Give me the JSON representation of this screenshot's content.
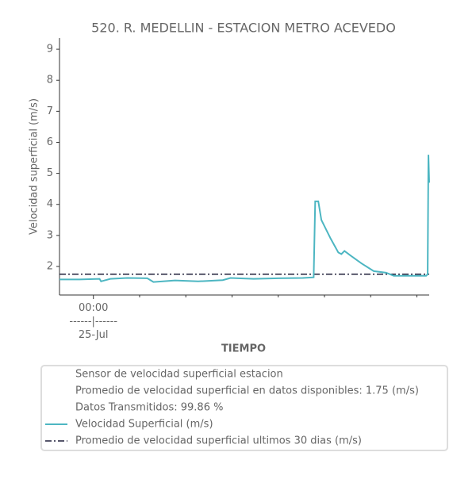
{
  "chart_data": {
    "type": "line",
    "title": "520. R. MEDELLIN - ESTACION METRO ACEVEDO",
    "ylabel": "Velocidad superficial (m/s)",
    "xlabel": "TIEMPO",
    "xlim": [
      -2.2,
      21.8
    ],
    "xticks": [
      {
        "value": 0,
        "label": "00:00\n------|------\n25-Jul"
      }
    ],
    "xminorticks": [
      3,
      6,
      9,
      12,
      15,
      18,
      21
    ],
    "ylim": [
      1.08,
      9.36
    ],
    "yticks": [
      2,
      3,
      4,
      5,
      6,
      7,
      8,
      9
    ],
    "legend_notes": [
      "Sensor de velocidad superficial estacion",
      "Promedio de velocidad superficial en datos disponibles: 1.75 (m/s)",
      "Datos Transmitidos: 99.86 %"
    ],
    "series": [
      {
        "name": "Velocidad Superficial (m/s)",
        "color": "#4db6c2",
        "style": "solid",
        "x": [
          -2.2,
          -0.9,
          0.4,
          0.5,
          1.1,
          2.2,
          3.5,
          3.9,
          5.3,
          6.8,
          8.4,
          8.9,
          10.4,
          12.0,
          13.6,
          14.3,
          14.4,
          14.6,
          14.8,
          15.4,
          15.9,
          16.1,
          16.3,
          16.7,
          17.4,
          18.2,
          19.0,
          19.5,
          20.3,
          21.6,
          21.7,
          21.75,
          21.8
        ],
        "values": [
          1.58,
          1.58,
          1.6,
          1.52,
          1.6,
          1.63,
          1.62,
          1.5,
          1.55,
          1.52,
          1.56,
          1.63,
          1.6,
          1.62,
          1.63,
          1.65,
          4.1,
          4.1,
          3.5,
          2.9,
          2.45,
          2.4,
          2.5,
          2.35,
          2.1,
          1.85,
          1.8,
          1.7,
          1.7,
          1.7,
          1.75,
          5.6,
          4.7
        ]
      },
      {
        "name": "Promedio de velocidad superficial ultimos 30 dias (m/s)",
        "color": "#1f1f3a",
        "style": "dashdot",
        "x": [
          -2.2,
          21.8
        ],
        "values": [
          1.75,
          1.75
        ]
      }
    ]
  }
}
